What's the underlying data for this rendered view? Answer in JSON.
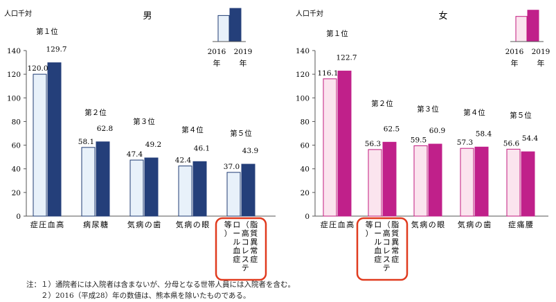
{
  "chart_data": [
    {
      "type": "bar",
      "title": "男",
      "unit_label": "人口千対",
      "ylim": [
        0,
        140
      ],
      "yticks": [
        0,
        20,
        40,
        60,
        80,
        100,
        120,
        140
      ],
      "categories": [
        "高血圧症",
        "糖尿病",
        "歯の病気",
        "眼の病気",
        "脂質異常症（高コレステロール血症等）"
      ],
      "category_lines": [
        [
          "高",
          "血",
          "圧",
          "症"
        ],
        [
          "糖",
          "尿",
          "病"
        ],
        [
          "歯",
          "の",
          "病",
          "気"
        ],
        [
          "眼",
          "の",
          "病",
          "気"
        ],
        [
          "脂質異常症",
          "（高コレステ",
          "ロール血症",
          "等）"
        ]
      ],
      "ranks": [
        "第１位",
        "第２位",
        "第３位",
        "第４位",
        "第５位"
      ],
      "series": [
        {
          "name": "2016年",
          "values": [
            120.0,
            58.1,
            47.4,
            42.4,
            37.0
          ],
          "labels": [
            "120.0",
            "58.1",
            "47.4",
            "42.4",
            "37.0"
          ]
        },
        {
          "name": "2019年",
          "values": [
            129.7,
            62.8,
            49.2,
            46.1,
            43.9
          ],
          "labels": [
            "129.7",
            "62.8",
            "49.2",
            "46.1",
            "43.9"
          ]
        }
      ],
      "colors": {
        "fill2016": "#e8f1fa",
        "stroke2016": "#1f3b73",
        "fill2019": "#243f7a"
      },
      "legend": {
        "labels": [
          "2016",
          "2019"
        ],
        "sublabels": [
          "年",
          "年"
        ]
      }
    },
    {
      "type": "bar",
      "title": "女",
      "unit_label": "人口千対",
      "ylim": [
        0,
        140
      ],
      "yticks": [
        0,
        20,
        40,
        60,
        80,
        100,
        120,
        140
      ],
      "categories": [
        "高血圧症",
        "脂質異常症（高コレステロール血症等）",
        "眼の病気",
        "歯の病気",
        "腰痛症"
      ],
      "category_lines": [
        [
          "高",
          "血",
          "圧",
          "症"
        ],
        [
          "脂質異常症",
          "（高コレステ",
          "ロール血症",
          "等）"
        ],
        [
          "眼",
          "の",
          "病",
          "気"
        ],
        [
          "歯",
          "の",
          "病",
          "気"
        ],
        [
          "腰",
          "痛",
          "症"
        ]
      ],
      "ranks": [
        "第１位",
        "第２位",
        "第３位",
        "第４位",
        "第５位"
      ],
      "series": [
        {
          "name": "2016年",
          "values": [
            116.1,
            56.3,
            59.5,
            57.3,
            56.6
          ],
          "labels": [
            "116.1",
            "56.3",
            "59.5",
            "57.3",
            "56.6"
          ]
        },
        {
          "name": "2019年",
          "values": [
            122.7,
            62.5,
            60.9,
            58.4,
            54.4
          ],
          "labels": [
            "122.7",
            "62.5",
            "60.9",
            "58.4",
            "54.4"
          ]
        }
      ],
      "colors": {
        "fill2016": "#fbe4ee",
        "stroke2016": "#c2187e",
        "fill2019": "#c0208a"
      },
      "legend": {
        "labels": [
          "2016",
          "2019"
        ],
        "sublabels": [
          "年",
          "年"
        ]
      }
    }
  ],
  "notes": [
    "注：１）通院者には入院者は含まないが、分母となる世帯人員には入院者を含む。",
    "　　２）2016（平成28）年の数値は、熊本県を除いたものである。"
  ],
  "highlight_color": "#e03a1e"
}
